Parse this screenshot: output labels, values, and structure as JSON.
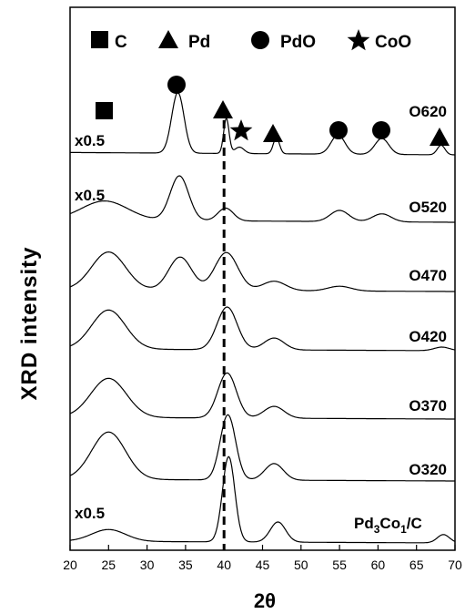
{
  "chart_data": {
    "type": "line",
    "xlabel": "2θ",
    "ylabel": "XRD intensity",
    "xlim": [
      20,
      70
    ],
    "x_ticks": [
      20,
      25,
      30,
      35,
      40,
      45,
      50,
      55,
      60,
      65,
      70
    ],
    "y_ticks": [],
    "grid": false,
    "legend_placement": "top",
    "legend": [
      {
        "symbol": "square",
        "label": "C"
      },
      {
        "symbol": "triangle",
        "label": "Pd"
      },
      {
        "symbol": "circle",
        "label": "PdO"
      },
      {
        "symbol": "star",
        "label": "CoO"
      }
    ],
    "reference_line": {
      "x": 40,
      "style": "dashed"
    },
    "series": [
      {
        "name": "O620",
        "multiplier": "x0.5",
        "peaks": [
          {
            "x": 34.0,
            "h": 0.38,
            "w": 0.8,
            "phase": "PdO"
          },
          {
            "x": 40.3,
            "h": 0.22,
            "w": 0.35,
            "phase": "Pd"
          },
          {
            "x": 42.0,
            "h": 0.04,
            "w": 0.6,
            "phase": "CoO"
          },
          {
            "x": 46.8,
            "h": 0.1,
            "w": 0.4,
            "phase": "Pd"
          },
          {
            "x": 54.8,
            "h": 0.12,
            "w": 0.9,
            "phase": "PdO"
          },
          {
            "x": 60.5,
            "h": 0.1,
            "w": 0.9,
            "phase": "PdO"
          },
          {
            "x": 68.2,
            "h": 0.06,
            "w": 0.5,
            "phase": "Pd"
          }
        ]
      },
      {
        "name": "O520",
        "multiplier": "x0.5",
        "peaks": [
          {
            "x": 24.5,
            "h": 0.12,
            "w": 3.0
          },
          {
            "x": 34.2,
            "h": 0.28,
            "w": 1.2
          },
          {
            "x": 40.2,
            "h": 0.08,
            "w": 1.0
          },
          {
            "x": 55.0,
            "h": 0.07,
            "w": 1.2
          },
          {
            "x": 60.5,
            "h": 0.05,
            "w": 1.2
          }
        ]
      },
      {
        "name": "O470",
        "peaks": [
          {
            "x": 25.0,
            "h": 0.32,
            "w": 2.2
          },
          {
            "x": 34.3,
            "h": 0.28,
            "w": 1.5
          },
          {
            "x": 40.3,
            "h": 0.32,
            "w": 1.5
          },
          {
            "x": 46.5,
            "h": 0.08,
            "w": 1.5
          },
          {
            "x": 55.0,
            "h": 0.04,
            "w": 1.5
          }
        ]
      },
      {
        "name": "O420",
        "peaks": [
          {
            "x": 25.0,
            "h": 0.33,
            "w": 2.2
          },
          {
            "x": 40.4,
            "h": 0.36,
            "w": 1.3
          },
          {
            "x": 46.5,
            "h": 0.1,
            "w": 1.3
          },
          {
            "x": 68.3,
            "h": 0.03,
            "w": 1.0
          }
        ]
      },
      {
        "name": "O370",
        "peaks": [
          {
            "x": 25.0,
            "h": 0.33,
            "w": 2.3
          },
          {
            "x": 40.4,
            "h": 0.38,
            "w": 1.2
          },
          {
            "x": 46.5,
            "h": 0.1,
            "w": 1.3
          }
        ]
      },
      {
        "name": "O320",
        "peaks": [
          {
            "x": 25.0,
            "h": 0.4,
            "w": 2.2
          },
          {
            "x": 40.5,
            "h": 0.55,
            "w": 1.0
          },
          {
            "x": 46.5,
            "h": 0.14,
            "w": 1.2
          }
        ]
      },
      {
        "name": "Pd3Co1/C",
        "label_main": "Pd",
        "label_sub1": "3",
        "label_mid": "Co",
        "label_sub2": "1",
        "label_tail": "/C",
        "multiplier": "x0.5",
        "peaks": [
          {
            "x": 25.0,
            "h": 0.1,
            "w": 2.2
          },
          {
            "x": 40.6,
            "h": 0.72,
            "w": 0.8
          },
          {
            "x": 47.0,
            "h": 0.17,
            "w": 1.0
          },
          {
            "x": 68.5,
            "h": 0.07,
            "w": 0.8
          }
        ]
      }
    ]
  }
}
